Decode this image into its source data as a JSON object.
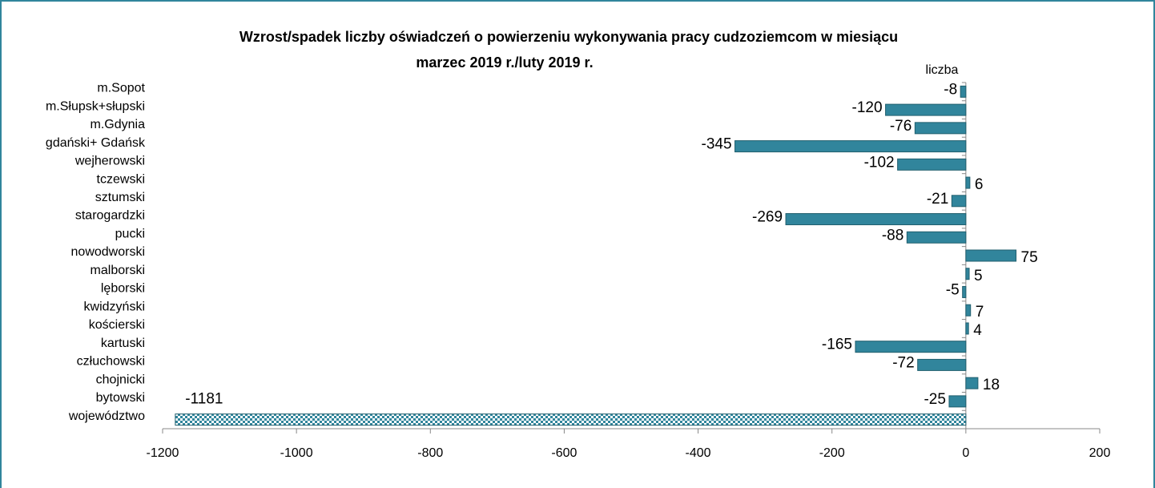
{
  "chart_data": {
    "type": "bar",
    "orientation": "horizontal",
    "title": [
      "Wzrost/spadek liczby oświadczeń o powierzeniu wykonywania pracy cudzoziemcom w miesiącu",
      "marzec 2019 r./luty 2019 r."
    ],
    "unit_label": "liczba",
    "categories": [
      "m.Sopot",
      "m.Słupsk+słupski",
      "m.Gdynia",
      "gdański+ Gdańsk",
      "wejherowski",
      "tczewski",
      "sztumski",
      "starogardzki",
      "pucki",
      "nowodworski",
      "malborski",
      "lęborski",
      "kwidzyński",
      "kościerski",
      "kartuski",
      "człuchowski",
      "chojnicki",
      "bytowski",
      "województwo"
    ],
    "values": [
      -8,
      -120,
      -76,
      -345,
      -102,
      6,
      -21,
      -269,
      -88,
      75,
      5,
      -5,
      7,
      4,
      -165,
      -72,
      18,
      -25,
      -1181
    ],
    "color": "#31859c",
    "xlim": [
      -1200,
      200
    ],
    "xticks": [
      -1200,
      -1000,
      -800,
      -600,
      -400,
      -200,
      0,
      200
    ]
  }
}
